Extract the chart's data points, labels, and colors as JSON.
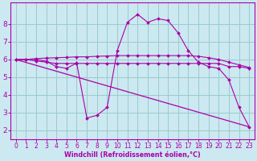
{
  "bg_color": "#cce8f0",
  "line_color": "#aa00aa",
  "grid_color": "#99cccc",
  "xlabel": "Windchill (Refroidissement éolien,°C)",
  "xlabel_color": "#aa00aa",
  "tick_color": "#aa00aa",
  "xlim": [
    -0.5,
    23.5
  ],
  "ylim": [
    1.5,
    9.2
  ],
  "xticks": [
    0,
    1,
    2,
    3,
    4,
    5,
    6,
    7,
    8,
    9,
    10,
    11,
    12,
    13,
    14,
    15,
    16,
    17,
    18,
    19,
    20,
    21,
    22,
    23
  ],
  "yticks": [
    2,
    3,
    4,
    5,
    6,
    7,
    8
  ],
  "series": [
    {
      "x": [
        0,
        1,
        2,
        3,
        4,
        5,
        6,
        7,
        8,
        9,
        10,
        11,
        12,
        13,
        14,
        15,
        16,
        17,
        18,
        19,
        20,
        21,
        22,
        23
      ],
      "y": [
        6.0,
        6.0,
        6.0,
        5.9,
        5.6,
        5.5,
        5.8,
        2.7,
        2.85,
        3.3,
        6.5,
        8.1,
        8.55,
        8.1,
        8.3,
        8.2,
        7.5,
        6.5,
        5.85,
        5.6,
        5.5,
        4.85,
        3.3,
        2.2
      ]
    },
    {
      "x": [
        0,
        1,
        2,
        3,
        4,
        5,
        6,
        7,
        8,
        9,
        10,
        11,
        12,
        13,
        14,
        15,
        16,
        17,
        18,
        19,
        20,
        21,
        22,
        23
      ],
      "y": [
        6.0,
        6.0,
        5.92,
        5.85,
        5.78,
        5.78,
        5.78,
        5.78,
        5.78,
        5.78,
        5.78,
        5.78,
        5.78,
        5.78,
        5.78,
        5.78,
        5.78,
        5.78,
        5.78,
        5.78,
        5.78,
        5.6,
        5.6,
        5.5
      ]
    },
    {
      "x": [
        0,
        1,
        2,
        3,
        4,
        5,
        6,
        7,
        8,
        9,
        10,
        11,
        12,
        13,
        14,
        15,
        16,
        17,
        18,
        19,
        20,
        21,
        22,
        23
      ],
      "y": [
        6.0,
        6.0,
        6.05,
        6.08,
        6.1,
        6.12,
        6.15,
        6.15,
        6.18,
        6.2,
        6.22,
        6.22,
        6.22,
        6.22,
        6.22,
        6.22,
        6.22,
        6.22,
        6.18,
        6.1,
        6.0,
        5.85,
        5.7,
        5.55
      ]
    },
    {
      "x": [
        0,
        23
      ],
      "y": [
        6.0,
        2.2
      ]
    }
  ]
}
